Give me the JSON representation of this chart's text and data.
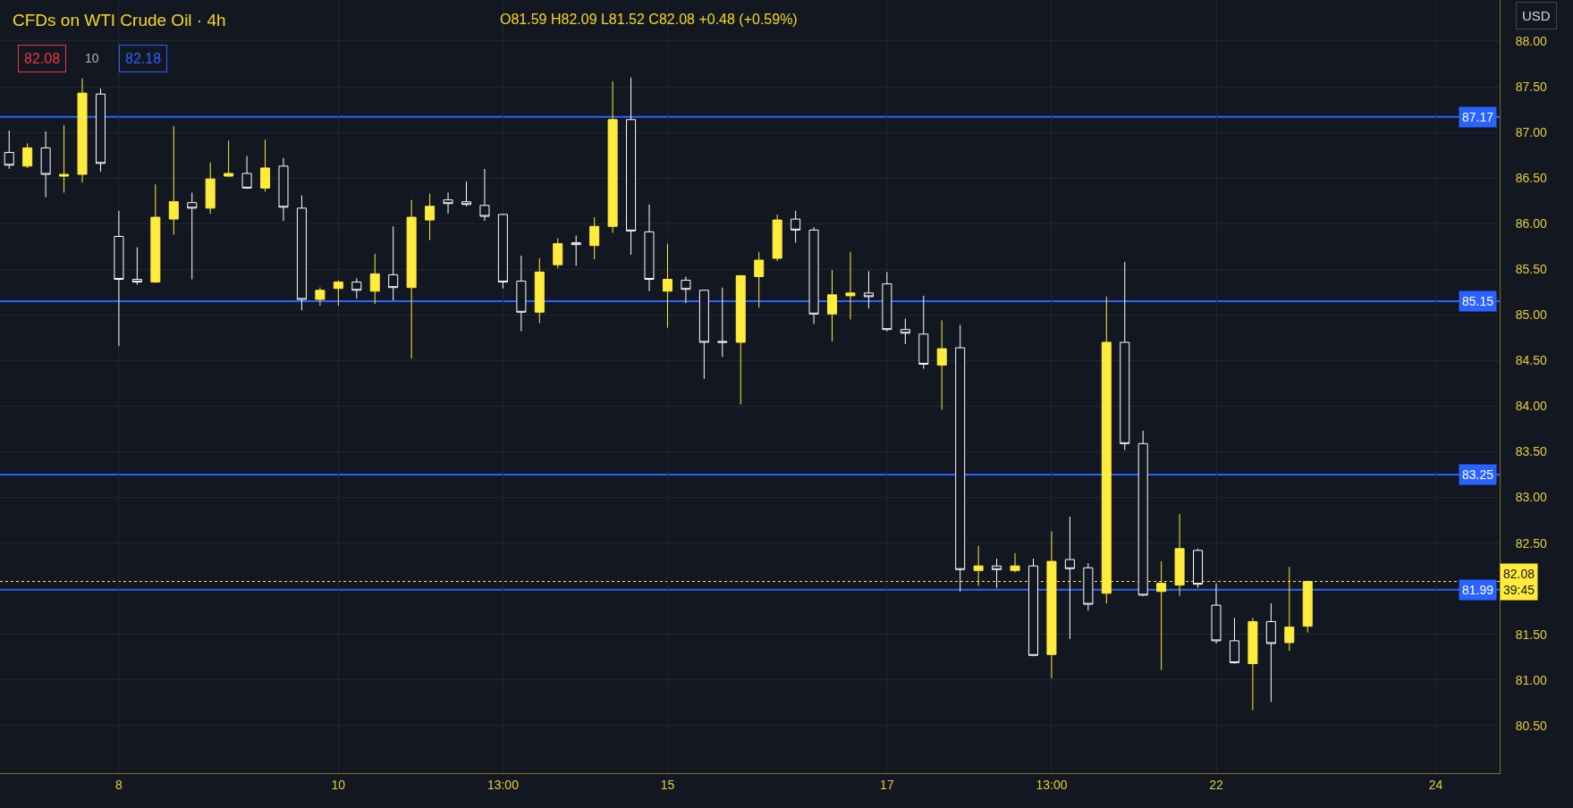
{
  "chart_data": {
    "type": "candlestick",
    "title": "CFDs on WTI Crude Oil · 4h",
    "annotations": [
      "O81.59 H82.09 L81.52 C82.08 +0.48 (+0.59%)",
      "82.08",
      "10",
      "82.18",
      "USD"
    ],
    "categories": [
      null,
      null,
      null,
      null,
      null,
      null,
      "8",
      null,
      null,
      null,
      null,
      null,
      null,
      null,
      null,
      null,
      null,
      null,
      "10",
      null,
      null,
      null,
      null,
      null,
      null,
      null,
      null,
      "13:00",
      null,
      null,
      null,
      null,
      null,
      null,
      null,
      null,
      "15",
      null,
      null,
      null,
      null,
      null,
      null,
      null,
      null,
      null,
      null,
      null,
      "17",
      null,
      null,
      null,
      null,
      null,
      null,
      null,
      null,
      "13:00",
      null,
      null,
      null,
      null,
      null,
      null,
      null,
      null,
      "22",
      null,
      null,
      null,
      null,
      null,
      null,
      null,
      null,
      null,
      null,
      null,
      "24",
      null,
      null,
      null
    ],
    "ohlc": [
      [
        86.78,
        87.02,
        86.6,
        86.64
      ],
      [
        86.63,
        86.88,
        86.61,
        86.83
      ],
      [
        86.83,
        87.01,
        86.29,
        86.54
      ],
      [
        86.52,
        87.08,
        86.34,
        86.54
      ],
      [
        86.54,
        87.59,
        86.45,
        87.43
      ],
      [
        87.42,
        87.48,
        86.57,
        86.66
      ],
      [
        85.86,
        86.14,
        84.66,
        85.39
      ],
      [
        85.39,
        85.74,
        85.33,
        85.36
      ],
      [
        85.36,
        86.43,
        85.35,
        86.07
      ],
      [
        86.05,
        87.07,
        85.88,
        86.24
      ],
      [
        86.23,
        86.34,
        85.39,
        86.17
      ],
      [
        86.17,
        86.67,
        86.11,
        86.49
      ],
      [
        86.52,
        86.91,
        86.51,
        86.55
      ],
      [
        86.55,
        86.74,
        86.38,
        86.39
      ],
      [
        86.39,
        86.92,
        86.35,
        86.61
      ],
      [
        86.63,
        86.72,
        86.03,
        86.18
      ],
      [
        86.17,
        86.31,
        85.05,
        85.17
      ],
      [
        85.17,
        85.3,
        85.1,
        85.27
      ],
      [
        85.29,
        85.38,
        85.1,
        85.36
      ],
      [
        85.36,
        85.4,
        85.18,
        85.27
      ],
      [
        85.26,
        85.67,
        85.12,
        85.45
      ],
      [
        85.44,
        85.97,
        85.16,
        85.3
      ],
      [
        85.3,
        86.26,
        84.52,
        86.07
      ],
      [
        86.04,
        86.33,
        85.82,
        86.19
      ],
      [
        86.26,
        86.34,
        86.11,
        86.22
      ],
      [
        86.24,
        86.46,
        86.19,
        86.21
      ],
      [
        86.2,
        86.6,
        86.03,
        86.08
      ],
      [
        86.1,
        86.11,
        85.29,
        85.36
      ],
      [
        85.37,
        85.65,
        84.82,
        85.03
      ],
      [
        85.03,
        85.62,
        84.91,
        85.47
      ],
      [
        85.55,
        85.84,
        85.51,
        85.78
      ],
      [
        85.79,
        85.87,
        85.54,
        85.77
      ],
      [
        85.76,
        86.07,
        85.61,
        85.97
      ],
      [
        85.97,
        87.56,
        85.9,
        87.14
      ],
      [
        87.14,
        87.6,
        85.66,
        85.92
      ],
      [
        85.91,
        86.21,
        85.26,
        85.39
      ],
      [
        85.26,
        85.78,
        84.86,
        85.39
      ],
      [
        85.38,
        85.42,
        85.13,
        85.28
      ],
      [
        85.27,
        85.27,
        84.3,
        84.7
      ],
      [
        84.71,
        85.3,
        84.54,
        84.7
      ],
      [
        84.7,
        85.43,
        84.02,
        85.43
      ],
      [
        85.42,
        85.69,
        85.08,
        85.6
      ],
      [
        85.62,
        86.1,
        85.59,
        86.04
      ],
      [
        86.05,
        86.14,
        85.79,
        85.93
      ],
      [
        85.93,
        85.96,
        84.9,
        85.01
      ],
      [
        85.01,
        85.49,
        84.71,
        85.22
      ],
      [
        85.21,
        85.69,
        84.95,
        85.24
      ],
      [
        85.24,
        85.48,
        85.07,
        85.2
      ],
      [
        85.34,
        85.47,
        84.82,
        84.84
      ],
      [
        84.84,
        84.96,
        84.68,
        84.8
      ],
      [
        84.79,
        85.21,
        84.41,
        84.46
      ],
      [
        84.45,
        84.94,
        83.96,
        84.63
      ],
      [
        84.64,
        84.89,
        81.97,
        82.21
      ],
      [
        82.2,
        82.47,
        82.03,
        82.25
      ],
      [
        82.25,
        82.33,
        82.01,
        82.21
      ],
      [
        82.2,
        82.39,
        82.18,
        82.25
      ],
      [
        82.25,
        82.33,
        81.26,
        81.27
      ],
      [
        81.28,
        82.63,
        81.02,
        82.3
      ],
      [
        82.32,
        82.79,
        81.45,
        82.22
      ],
      [
        82.23,
        82.28,
        81.76,
        81.83
      ],
      [
        81.95,
        85.2,
        81.84,
        84.7
      ],
      [
        84.7,
        85.58,
        83.52,
        83.59
      ],
      [
        83.59,
        83.73,
        81.92,
        81.93
      ],
      [
        81.97,
        82.3,
        81.11,
        82.06
      ],
      [
        82.04,
        82.82,
        81.92,
        82.44
      ],
      [
        82.42,
        82.44,
        82.01,
        82.05
      ],
      [
        81.82,
        82.06,
        81.4,
        81.43
      ],
      [
        81.43,
        81.68,
        81.18,
        81.19
      ],
      [
        81.18,
        81.68,
        80.67,
        81.64
      ],
      [
        81.64,
        81.84,
        80.76,
        81.4
      ],
      [
        81.41,
        82.24,
        81.32,
        81.58
      ],
      [
        81.59,
        82.09,
        81.52,
        82.08
      ],
      null,
      null,
      null,
      null,
      null,
      null,
      null,
      null,
      null,
      null
    ],
    "colors": [
      "#ffffff",
      "#ffeb3b",
      "#ffffff",
      "#ffeb3b",
      "#ffeb3b",
      "#ffffff",
      "#ffffff",
      "#ffffff",
      "#ffeb3b",
      "#ffeb3b",
      "#ffffff",
      "#ffeb3b",
      "#ffeb3b",
      "#ffffff",
      "#ffeb3b",
      "#ffffff",
      "#ffffff",
      "#ffeb3b",
      "#ffeb3b",
      "#ffffff",
      "#ffeb3b",
      "#ffffff",
      "#ffeb3b",
      "#ffeb3b",
      "#ffffff",
      "#ffffff",
      "#ffffff",
      "#ffffff",
      "#ffffff",
      "#ffeb3b",
      "#ffeb3b",
      "#ffffff",
      "#ffeb3b",
      "#ffeb3b",
      "#ffffff",
      "#ffffff",
      "#ffeb3b",
      "#ffffff",
      "#ffffff",
      "#ffffff",
      "#ffeb3b",
      "#ffeb3b",
      "#ffeb3b",
      "#ffffff",
      "#ffffff",
      "#ffeb3b",
      "#ffeb3b",
      "#ffffff",
      "#ffffff",
      "#ffffff",
      "#ffffff",
      "#ffeb3b",
      "#ffffff",
      "#ffeb3b",
      "#ffffff",
      "#ffeb3b",
      "#ffffff",
      "#ffeb3b",
      "#ffffff",
      "#ffffff",
      "#ffeb3b",
      "#ffffff",
      "#ffffff",
      "#ffeb3b",
      "#ffeb3b",
      "#ffffff",
      "#ffffff",
      "#ffffff",
      "#ffeb3b",
      "#ffffff",
      "#ffeb3b",
      "#ffeb3b",
      null,
      null,
      null,
      null,
      null,
      null,
      null,
      null,
      null,
      null
    ],
    "ylim": [
      79.98,
      88.45
    ],
    "yticks": [
      {
        "value": 80.5,
        "label": "80.50"
      },
      {
        "value": 81.0,
        "label": "81.00"
      },
      {
        "value": 81.5,
        "label": "81.50"
      },
      {
        "value": 82.0,
        "label": null
      },
      {
        "value": 82.5,
        "label": "82.50"
      },
      {
        "value": 83.0,
        "label": "83.00"
      },
      {
        "value": 83.5,
        "label": "83.50"
      },
      {
        "value": 84.0,
        "label": "84.00"
      },
      {
        "value": 84.5,
        "label": "84.50"
      },
      {
        "value": 85.0,
        "label": "85.00"
      },
      {
        "value": 85.5,
        "label": "85.50"
      },
      {
        "value": 86.0,
        "label": "86.00"
      },
      {
        "value": 86.5,
        "label": "86.50"
      },
      {
        "value": 87.0,
        "label": "87.00"
      },
      {
        "value": 87.5,
        "label": "87.50"
      },
      {
        "value": 88.0,
        "label": "88.00"
      }
    ],
    "ref_lines": [
      {
        "axis": "y",
        "value": 87.17,
        "label": "87.17",
        "color": "#2962ff"
      },
      {
        "axis": "y",
        "value": 85.15,
        "label": "85.15",
        "color": "#2962ff"
      },
      {
        "axis": "y",
        "value": 83.25,
        "label": "83.25",
        "color": "#2962ff"
      },
      {
        "axis": "y",
        "value": 81.99,
        "label": "81.99",
        "color": "#2962ff"
      },
      {
        "axis": "y",
        "value": 82.08,
        "label": "82.08\n39:45",
        "color": "#ffeb3b",
        "line_style": "dotted"
      }
    ],
    "grid": true
  }
}
